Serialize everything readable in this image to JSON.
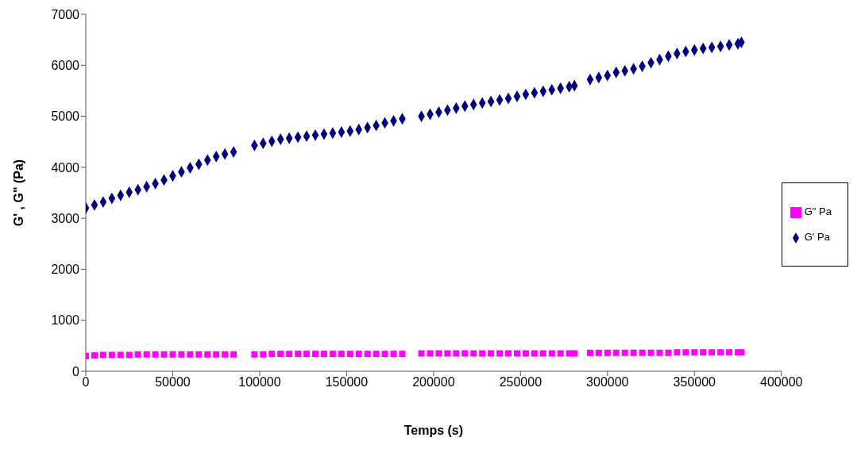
{
  "chart_data": {
    "type": "scatter",
    "xlabel": "Temps  (s)",
    "ylabel": "G' , G\" (Pa)",
    "xlim": [
      0,
      400000
    ],
    "xticks": [
      0,
      50000,
      100000,
      150000,
      200000,
      250000,
      300000,
      350000,
      400000
    ],
    "ylim": [
      0,
      7000
    ],
    "yticks": [
      0,
      1000,
      2000,
      3000,
      4000,
      5000,
      6000,
      7000
    ],
    "grid": false,
    "legend": "right",
    "series": [
      {
        "name": "G' Pa",
        "color": "#000080",
        "marker": "diamond",
        "x": [
          0,
          5000,
          10000,
          15000,
          20000,
          25000,
          30000,
          35000,
          40000,
          45000,
          50000,
          55000,
          60000,
          65000,
          70000,
          75000,
          80000,
          85000,
          97000,
          102000,
          107000,
          112000,
          117000,
          122000,
          127000,
          132000,
          137000,
          142000,
          147000,
          152000,
          157000,
          162000,
          167000,
          172000,
          177000,
          182000,
          193000,
          198000,
          203000,
          208000,
          213000,
          218000,
          223000,
          228000,
          233000,
          238000,
          243000,
          248000,
          253000,
          258000,
          263000,
          268000,
          273000,
          278000,
          281000,
          290000,
          295000,
          300000,
          305000,
          310000,
          315000,
          320000,
          325000,
          330000,
          335000,
          340000,
          345000,
          350000,
          355000,
          360000,
          365000,
          370000,
          375000,
          377000
        ],
        "values": [
          3200,
          3260,
          3320,
          3390,
          3450,
          3510,
          3560,
          3620,
          3680,
          3750,
          3830,
          3910,
          3990,
          4060,
          4140,
          4210,
          4260,
          4300,
          4430,
          4470,
          4510,
          4550,
          4570,
          4590,
          4610,
          4630,
          4650,
          4670,
          4690,
          4710,
          4740,
          4780,
          4820,
          4870,
          4910,
          4950,
          5000,
          5040,
          5080,
          5120,
          5160,
          5200,
          5230,
          5260,
          5290,
          5320,
          5350,
          5390,
          5430,
          5460,
          5490,
          5520,
          5550,
          5580,
          5600,
          5720,
          5760,
          5800,
          5860,
          5890,
          5930,
          5980,
          6050,
          6110,
          6180,
          6230,
          6270,
          6300,
          6330,
          6350,
          6370,
          6400,
          6420,
          6450
        ]
      },
      {
        "name": "G\" Pa",
        "color": "#ff00ff",
        "marker": "square",
        "x": [
          0,
          5000,
          10000,
          15000,
          20000,
          25000,
          30000,
          35000,
          40000,
          45000,
          50000,
          55000,
          60000,
          65000,
          70000,
          75000,
          80000,
          85000,
          97000,
          102000,
          107000,
          112000,
          117000,
          122000,
          127000,
          132000,
          137000,
          142000,
          147000,
          152000,
          157000,
          162000,
          167000,
          172000,
          177000,
          182000,
          193000,
          198000,
          203000,
          208000,
          213000,
          218000,
          223000,
          228000,
          233000,
          238000,
          243000,
          248000,
          253000,
          258000,
          263000,
          268000,
          273000,
          278000,
          281000,
          290000,
          295000,
          300000,
          305000,
          310000,
          315000,
          320000,
          325000,
          330000,
          335000,
          340000,
          345000,
          350000,
          355000,
          360000,
          365000,
          370000,
          375000,
          377000
        ],
        "values": [
          300,
          310,
          320,
          320,
          320,
          320,
          330,
          330,
          330,
          330,
          330,
          330,
          330,
          330,
          330,
          330,
          330,
          330,
          330,
          330,
          340,
          340,
          340,
          340,
          340,
          340,
          340,
          340,
          340,
          340,
          340,
          340,
          340,
          340,
          340,
          340,
          350,
          350,
          350,
          350,
          350,
          350,
          350,
          350,
          350,
          350,
          350,
          350,
          350,
          350,
          350,
          350,
          350,
          350,
          350,
          360,
          360,
          360,
          360,
          360,
          360,
          360,
          360,
          360,
          360,
          370,
          370,
          370,
          370,
          370,
          370,
          370,
          370,
          370
        ]
      }
    ]
  }
}
